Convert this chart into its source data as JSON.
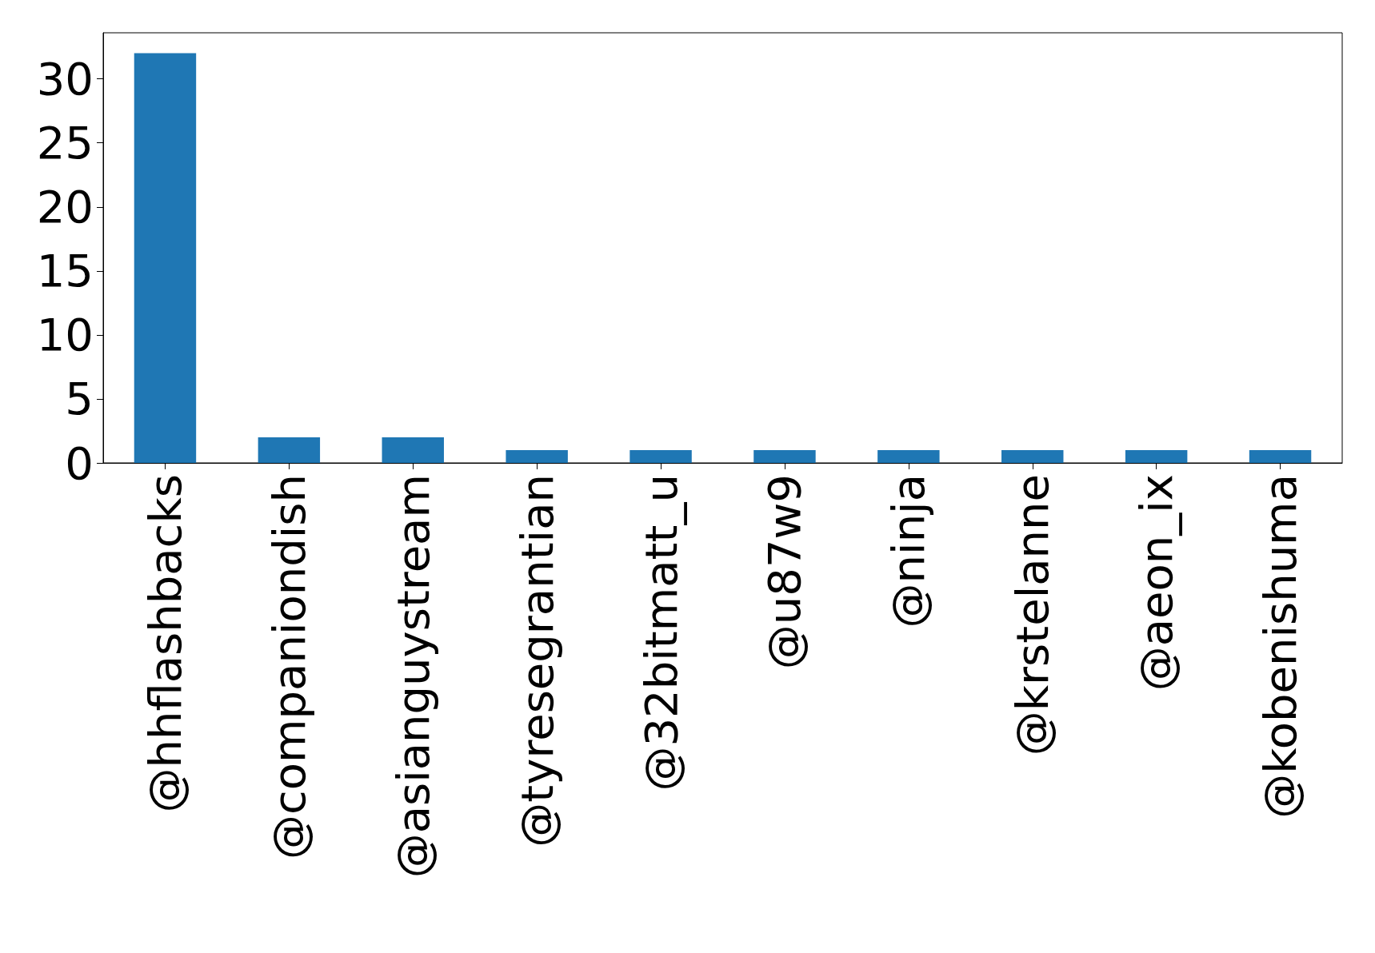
{
  "chart_data": {
    "type": "bar",
    "categories": [
      "@hhflashbacks",
      "@companiondish",
      "@asianguystream",
      "@tyresegrantian",
      "@32bitmatt_u",
      "@u87w9",
      "@ninja",
      "@krstelanne",
      "@aeon_ix",
      "@kobenishuma"
    ],
    "values": [
      32,
      2,
      2,
      1,
      1,
      1,
      1,
      1,
      1,
      1
    ],
    "color": "#1f77b4",
    "ylim": [
      0,
      33.6
    ],
    "yticks": [
      0,
      5,
      10,
      15,
      20,
      25,
      30
    ],
    "grid": false
  }
}
